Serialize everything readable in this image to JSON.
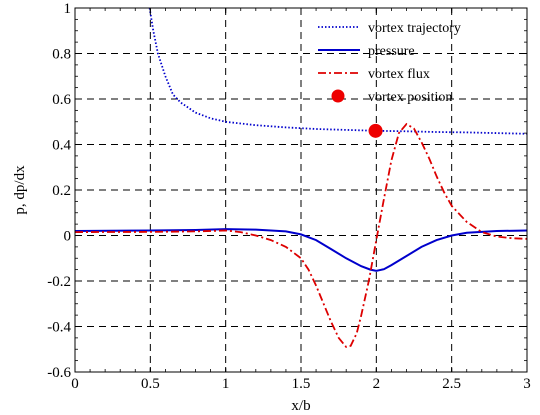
{
  "chart_data": {
    "type": "line",
    "title": "",
    "xlabel": "x/b",
    "ylabel": "p, dp/dx",
    "xlim": [
      0,
      3
    ],
    "ylim": [
      -0.6,
      1
    ],
    "x_ticks": [
      "0",
      "0.5",
      "1",
      "1.5",
      "2",
      "2.5",
      "3"
    ],
    "y_ticks": [
      "-0.6",
      "-0.4",
      "-0.2",
      "0",
      "0.2",
      "0.4",
      "0.6",
      "0.8",
      "1"
    ],
    "grid": true,
    "legend_position": "top-right",
    "series": [
      {
        "name": "vortex trajectory",
        "style": "dotted",
        "color": "#0000cc",
        "points": [
          [
            0.495,
            1.0
          ],
          [
            0.52,
            0.9
          ],
          [
            0.55,
            0.8
          ],
          [
            0.6,
            0.7
          ],
          [
            0.65,
            0.62
          ],
          [
            0.7,
            0.585
          ],
          [
            0.8,
            0.54
          ],
          [
            0.9,
            0.515
          ],
          [
            1.0,
            0.5
          ],
          [
            1.2,
            0.485
          ],
          [
            1.4,
            0.475
          ],
          [
            1.6,
            0.468
          ],
          [
            1.8,
            0.464
          ],
          [
            2.0,
            0.46
          ],
          [
            2.2,
            0.458
          ],
          [
            2.4,
            0.455
          ],
          [
            2.6,
            0.453
          ],
          [
            2.8,
            0.45
          ],
          [
            3.0,
            0.447
          ]
        ]
      },
      {
        "name": "pressure",
        "style": "solid",
        "color": "#0000cc",
        "points": [
          [
            0,
            0.02
          ],
          [
            0.5,
            0.022
          ],
          [
            0.8,
            0.024
          ],
          [
            1.0,
            0.028
          ],
          [
            1.2,
            0.026
          ],
          [
            1.4,
            0.018
          ],
          [
            1.5,
            0.005
          ],
          [
            1.6,
            -0.02
          ],
          [
            1.7,
            -0.06
          ],
          [
            1.8,
            -0.1
          ],
          [
            1.9,
            -0.135
          ],
          [
            1.96,
            -0.15
          ],
          [
            2.0,
            -0.155
          ],
          [
            2.05,
            -0.148
          ],
          [
            2.1,
            -0.13
          ],
          [
            2.2,
            -0.09
          ],
          [
            2.3,
            -0.05
          ],
          [
            2.4,
            -0.02
          ],
          [
            2.5,
            0.0
          ],
          [
            2.6,
            0.012
          ],
          [
            2.8,
            0.02
          ],
          [
            3.0,
            0.022
          ]
        ]
      },
      {
        "name": "vortex flux",
        "style": "dashdot",
        "color": "#dd0000",
        "points": [
          [
            0,
            0.015
          ],
          [
            0.5,
            0.016
          ],
          [
            0.8,
            0.018
          ],
          [
            1.0,
            0.022
          ],
          [
            1.1,
            0.015
          ],
          [
            1.2,
            0.0
          ],
          [
            1.3,
            -0.02
          ],
          [
            1.4,
            -0.05
          ],
          [
            1.5,
            -0.1
          ],
          [
            1.55,
            -0.15
          ],
          [
            1.6,
            -0.22
          ],
          [
            1.65,
            -0.3
          ],
          [
            1.7,
            -0.38
          ],
          [
            1.75,
            -0.45
          ],
          [
            1.8,
            -0.49
          ],
          [
            1.83,
            -0.485
          ],
          [
            1.87,
            -0.43
          ],
          [
            1.9,
            -0.35
          ],
          [
            1.95,
            -0.2
          ],
          [
            2.0,
            -0.02
          ],
          [
            2.05,
            0.16
          ],
          [
            2.1,
            0.33
          ],
          [
            2.15,
            0.45
          ],
          [
            2.2,
            0.49
          ],
          [
            2.25,
            0.47
          ],
          [
            2.3,
            0.41
          ],
          [
            2.35,
            0.34
          ],
          [
            2.4,
            0.26
          ],
          [
            2.45,
            0.19
          ],
          [
            2.5,
            0.13
          ],
          [
            2.6,
            0.06
          ],
          [
            2.7,
            0.015
          ],
          [
            2.8,
            -0.005
          ],
          [
            2.9,
            -0.012
          ],
          [
            3.0,
            -0.015
          ]
        ]
      },
      {
        "name": "vortex position",
        "style": "marker",
        "color": "#ee0000",
        "points": [
          [
            1.995,
            0.46
          ]
        ]
      }
    ]
  }
}
